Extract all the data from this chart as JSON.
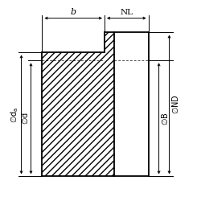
{
  "bg_color": "#ffffff",
  "line_color": "#000000",
  "figsize": [
    2.5,
    2.5
  ],
  "dpi": 100,
  "labels": {
    "b": "b",
    "NL": "NL",
    "da": "da",
    "d": "d",
    "B": "B",
    "ND": "ND"
  },
  "gear": {
    "gL": 52,
    "gR": 130,
    "gBot": 30,
    "gTop": 185,
    "hR": 185,
    "hTop": 210,
    "pitchY": 175,
    "boreX": 142
  }
}
